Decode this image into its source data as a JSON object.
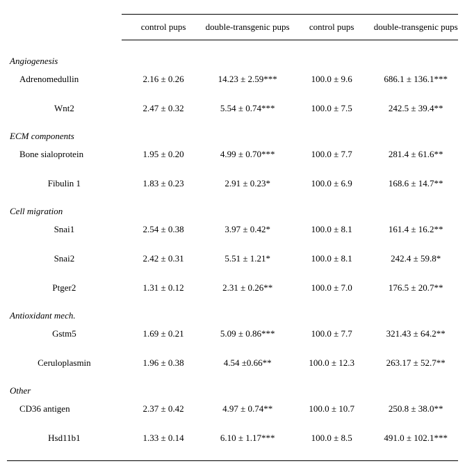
{
  "headers": {
    "control": "control pups",
    "dt": "double-transgenic pups"
  },
  "sections": [
    {
      "title": "Angiogenesis",
      "first": true,
      "rows": [
        {
          "gene": "Adrenomedullin",
          "align": "left",
          "c1": "2.16 ± 0.26",
          "c2": "14.23 ± 2.59***",
          "c3": "100.0 ± 9.6",
          "c4": "686.1 ± 136.1***"
        },
        {
          "gene": "Wnt2",
          "align": "center",
          "c1": "2.47 ± 0.32",
          "c2": "5.54 ± 0.74***",
          "c3": "100.0 ± 7.5",
          "c4": "242.5 ± 39.4**"
        }
      ]
    },
    {
      "title": "ECM components",
      "rows": [
        {
          "gene": "Bone sialoprotein",
          "align": "left",
          "c1": "1.95 ± 0.20",
          "c2": "4.99 ± 0.70***",
          "c3": "100.0 ± 7.7",
          "c4": "281.4 ± 61.6**"
        },
        {
          "gene": "Fibulin 1",
          "align": "center",
          "c1": "1.83 ± 0.23",
          "c2": "2.91 ± 0.23*",
          "c3": "100.0 ± 6.9",
          "c4": "168.6 ± 14.7**"
        }
      ]
    },
    {
      "title": "Cell migration",
      "rows": [
        {
          "gene": "Snai1",
          "align": "center",
          "c1": "2.54 ± 0.38",
          "c2": "3.97 ± 0.42*",
          "c3": "100.0 ± 8.1",
          "c4": "161.4 ± 16.2**"
        },
        {
          "gene": "Snai2",
          "align": "center",
          "c1": "2.42 ± 0.31",
          "c2": "5.51 ± 1.21*",
          "c3": "100.0 ± 8.1",
          "c4": "242.4 ± 59.8*"
        },
        {
          "gene": "Ptger2",
          "align": "center",
          "c1": "1.31 ± 0.12",
          "c2": "2.31 ± 0.26**",
          "c3": "100.0 ± 7.0",
          "c4": "176.5 ± 20.7**"
        }
      ]
    },
    {
      "title": "Antioxidant mech.",
      "rows": [
        {
          "gene": "Gstm5",
          "align": "center",
          "c1": "1.69 ± 0.21",
          "c2": "5.09 ± 0.86***",
          "c3": "100.0 ± 7.7",
          "c4": "321.43 ± 64.2**"
        },
        {
          "gene": "Ceruloplasmin",
          "align": "center",
          "c1": "1.96 ± 0.38",
          "c2": "4.54 ±0.66**",
          "c3": "100.0 ± 12.3",
          "c4": "263.17 ± 52.7**"
        }
      ]
    },
    {
      "title": "Other",
      "rows": [
        {
          "gene": "CD36 antigen",
          "align": "left",
          "c1": "2.37 ± 0.42",
          "c2": "4.97 ± 0.74**",
          "c3": "100.0 ± 10.7",
          "c4": "250.8 ± 38.0**"
        },
        {
          "gene": "Hsd11b1",
          "align": "center",
          "c1": "1.33 ± 0.14",
          "c2": "6.10 ± 1.17***",
          "c3": "100.0 ± 8.5",
          "c4": "491.0 ± 102.1***"
        }
      ]
    }
  ]
}
